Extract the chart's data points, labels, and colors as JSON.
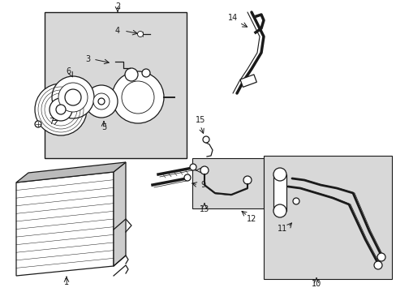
{
  "bg_color": "#ffffff",
  "line_color": "#1a1a1a",
  "gray_fill": "#d8d8d8",
  "fig_width": 4.89,
  "fig_height": 3.6,
  "dpi": 100
}
